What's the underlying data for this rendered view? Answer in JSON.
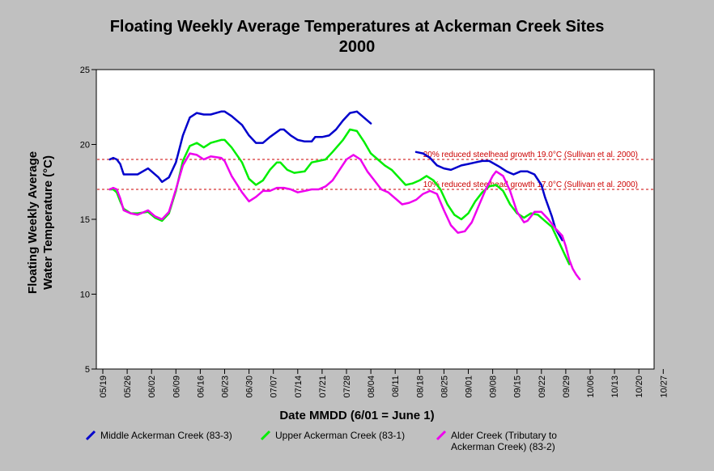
{
  "chart_data": {
    "type": "line",
    "title": "Floating Weekly Average Temperatures at Ackerman Creek Sites",
    "subtitle": "2000",
    "ylabel_line1": "Floating Weekly Average",
    "ylabel_line2": "Water Temperature (°C)",
    "xlabel": "Date MMDD (6/01 = June 1)",
    "ylim": [
      5,
      25
    ],
    "yticks": [
      5,
      10,
      15,
      20,
      25
    ],
    "xticks": [
      "05/19",
      "05/26",
      "06/02",
      "06/09",
      "06/16",
      "06/23",
      "06/30",
      "07/07",
      "07/14",
      "07/21",
      "07/28",
      "08/04",
      "08/11",
      "08/18",
      "08/25",
      "09/01",
      "09/08",
      "09/15",
      "09/22",
      "09/29",
      "10/06",
      "10/13",
      "10/20",
      "10/27"
    ],
    "xlim_days": [
      0,
      168
    ],
    "reference_lines": [
      {
        "label": "20% reduced steelhead growth 19.0°C (Sullivan et al. 2000)",
        "value": 19.0
      },
      {
        "label": "10% reduced steelhead growth 17.0°C (Sullivan et al. 2000)",
        "value": 17.0
      }
    ],
    "series": [
      {
        "name": "Middle Ackerman Creek (83-3)",
        "color": "#0000cc",
        "segments": [
          [
            [
              2,
              19.0
            ],
            [
              3,
              19.1
            ],
            [
              4,
              19.0
            ],
            [
              5,
              18.7
            ],
            [
              6,
              18.0
            ],
            [
              8,
              18.0
            ],
            [
              10,
              18.0
            ],
            [
              13,
              18.4
            ],
            [
              16,
              17.8
            ],
            [
              17,
              17.5
            ],
            [
              19,
              17.8
            ],
            [
              21,
              18.8
            ],
            [
              23,
              20.6
            ],
            [
              25,
              21.8
            ],
            [
              27,
              22.1
            ],
            [
              29,
              22.0
            ],
            [
              31,
              22.0
            ],
            [
              34,
              22.2
            ],
            [
              35,
              22.2
            ],
            [
              37,
              21.9
            ],
            [
              40,
              21.3
            ],
            [
              42,
              20.6
            ],
            [
              44,
              20.1
            ],
            [
              46,
              20.1
            ],
            [
              48,
              20.5
            ],
            [
              51,
              21.0
            ],
            [
              52,
              21.0
            ],
            [
              54,
              20.6
            ],
            [
              56,
              20.3
            ],
            [
              58,
              20.2
            ],
            [
              60,
              20.2
            ],
            [
              61,
              20.5
            ],
            [
              63,
              20.5
            ],
            [
              65,
              20.6
            ],
            [
              67,
              21.0
            ],
            [
              69,
              21.6
            ],
            [
              71,
              22.1
            ],
            [
              73,
              22.2
            ],
            [
              75,
              21.8
            ],
            [
              77,
              21.4
            ]
          ],
          [
            [
              90,
              19.5
            ],
            [
              92,
              19.4
            ],
            [
              94,
              19.1
            ],
            [
              96,
              18.6
            ],
            [
              98,
              18.4
            ],
            [
              100,
              18.3
            ],
            [
              103,
              18.6
            ],
            [
              105,
              18.7
            ],
            [
              107,
              18.8
            ],
            [
              109,
              18.9
            ],
            [
              111,
              18.9
            ],
            [
              114,
              18.5
            ],
            [
              116,
              18.2
            ],
            [
              118,
              18.0
            ],
            [
              120,
              18.2
            ],
            [
              122,
              18.2
            ],
            [
              124,
              18.0
            ],
            [
              126,
              17.3
            ],
            [
              127,
              16.5
            ],
            [
              129,
              15.2
            ],
            [
              130,
              14.4
            ],
            [
              131,
              14.0
            ],
            [
              132,
              13.6
            ]
          ]
        ]
      },
      {
        "name": "Upper Ackerman Creek (83-1)",
        "color": "#00ee00",
        "segments": [
          [
            [
              2,
              17.0
            ],
            [
              3,
              17.0
            ],
            [
              4,
              16.8
            ],
            [
              5,
              16.2
            ],
            [
              6,
              15.7
            ],
            [
              8,
              15.4
            ],
            [
              10,
              15.4
            ],
            [
              13,
              15.5
            ],
            [
              15,
              15.1
            ],
            [
              17,
              14.9
            ],
            [
              19,
              15.4
            ],
            [
              21,
              16.9
            ],
            [
              23,
              18.9
            ],
            [
              25,
              19.9
            ],
            [
              27,
              20.1
            ],
            [
              29,
              19.8
            ],
            [
              31,
              20.1
            ],
            [
              34,
              20.3
            ],
            [
              35,
              20.3
            ],
            [
              37,
              19.8
            ],
            [
              40,
              18.8
            ],
            [
              42,
              17.7
            ],
            [
              44,
              17.3
            ],
            [
              46,
              17.6
            ],
            [
              48,
              18.3
            ],
            [
              50,
              18.8
            ],
            [
              51,
              18.8
            ],
            [
              53,
              18.3
            ],
            [
              55,
              18.1
            ],
            [
              58,
              18.2
            ],
            [
              60,
              18.8
            ],
            [
              62,
              18.9
            ],
            [
              64,
              19.0
            ],
            [
              66,
              19.5
            ],
            [
              69,
              20.3
            ],
            [
              71,
              21.0
            ],
            [
              73,
              20.9
            ],
            [
              75,
              20.2
            ],
            [
              77,
              19.4
            ],
            [
              79,
              19.0
            ],
            [
              81,
              18.6
            ],
            [
              83,
              18.3
            ],
            [
              85,
              17.8
            ],
            [
              87,
              17.3
            ],
            [
              89,
              17.4
            ],
            [
              91,
              17.6
            ],
            [
              93,
              17.9
            ],
            [
              95,
              17.6
            ],
            [
              97,
              17.0
            ],
            [
              99,
              16.0
            ],
            [
              101,
              15.3
            ],
            [
              103,
              15.0
            ],
            [
              105,
              15.4
            ],
            [
              107,
              16.2
            ],
            [
              109,
              16.8
            ],
            [
              111,
              17.2
            ],
            [
              113,
              17.3
            ],
            [
              115,
              16.9
            ],
            [
              117,
              16.0
            ],
            [
              119,
              15.4
            ],
            [
              121,
              15.1
            ],
            [
              123,
              15.4
            ],
            [
              125,
              15.3
            ],
            [
              127,
              14.9
            ],
            [
              129,
              14.5
            ],
            [
              130,
              14.0
            ],
            [
              131,
              13.5
            ],
            [
              132,
              13.0
            ],
            [
              133,
              12.5
            ],
            [
              134,
              12.0
            ]
          ]
        ]
      },
      {
        "name": "Alder Creek (Tributary to Ackerman Creek) (83-2)",
        "color": "#ee00ee",
        "segments": [
          [
            [
              2,
              17.0
            ],
            [
              3,
              17.1
            ],
            [
              4,
              17.0
            ],
            [
              5,
              16.4
            ],
            [
              6,
              15.6
            ],
            [
              8,
              15.4
            ],
            [
              10,
              15.3
            ],
            [
              13,
              15.6
            ],
            [
              15,
              15.2
            ],
            [
              17,
              15.0
            ],
            [
              19,
              15.5
            ],
            [
              21,
              17.0
            ],
            [
              23,
              18.6
            ],
            [
              25,
              19.4
            ],
            [
              27,
              19.3
            ],
            [
              29,
              19.0
            ],
            [
              31,
              19.2
            ],
            [
              34,
              19.1
            ],
            [
              35,
              18.9
            ],
            [
              37,
              17.9
            ],
            [
              40,
              16.8
            ],
            [
              42,
              16.2
            ],
            [
              44,
              16.5
            ],
            [
              46,
              16.9
            ],
            [
              48,
              16.9
            ],
            [
              50,
              17.1
            ],
            [
              52,
              17.1
            ],
            [
              54,
              17.0
            ],
            [
              56,
              16.8
            ],
            [
              58,
              16.9
            ],
            [
              60,
              17.0
            ],
            [
              62,
              17.0
            ],
            [
              64,
              17.2
            ],
            [
              66,
              17.6
            ],
            [
              68,
              18.3
            ],
            [
              70,
              19.0
            ],
            [
              72,
              19.3
            ],
            [
              74,
              19.0
            ],
            [
              76,
              18.2
            ],
            [
              78,
              17.6
            ],
            [
              80,
              17.0
            ],
            [
              82,
              16.8
            ],
            [
              84,
              16.4
            ],
            [
              86,
              16.0
            ],
            [
              88,
              16.1
            ],
            [
              90,
              16.3
            ],
            [
              92,
              16.7
            ],
            [
              94,
              16.9
            ],
            [
              96,
              16.7
            ],
            [
              98,
              15.6
            ],
            [
              100,
              14.6
            ],
            [
              102,
              14.1
            ],
            [
              104,
              14.2
            ],
            [
              106,
              14.8
            ],
            [
              108,
              15.9
            ],
            [
              110,
              17.0
            ],
            [
              112,
              17.9
            ],
            [
              113,
              18.2
            ],
            [
              115,
              17.9
            ],
            [
              117,
              16.9
            ],
            [
              119,
              15.5
            ],
            [
              121,
              14.8
            ],
            [
              122,
              14.9
            ],
            [
              124,
              15.5
            ],
            [
              126,
              15.5
            ],
            [
              128,
              15.0
            ],
            [
              130,
              14.4
            ],
            [
              132,
              13.9
            ],
            [
              133,
              13.2
            ],
            [
              134,
              12.3
            ],
            [
              135,
              11.7
            ],
            [
              136,
              11.3
            ],
            [
              137,
              11.0
            ]
          ]
        ]
      }
    ]
  }
}
